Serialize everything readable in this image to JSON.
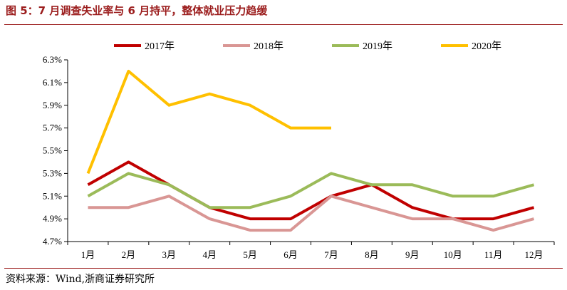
{
  "figure": {
    "title": "图 5：7 月调查失业率与 6 月持平，整体就业压力趋缓",
    "source": "资料来源：Wind,浙商证券研究所"
  },
  "chart_data": {
    "type": "line",
    "title": "图 5：7 月调查失业率与 6 月持平，整体就业压力趋缓",
    "categories": [
      "1月",
      "2月",
      "3月",
      "4月",
      "5月",
      "6月",
      "7月",
      "8月",
      "9月",
      "10月",
      "11月",
      "12月"
    ],
    "ylim": [
      4.7,
      6.3
    ],
    "yticks": [
      4.7,
      4.9,
      5.1,
      5.3,
      5.5,
      5.7,
      5.9,
      6.1,
      6.3
    ],
    "ytick_labels": [
      "4.7%",
      "4.9%",
      "5.1%",
      "5.3%",
      "5.5%",
      "5.7%",
      "5.9%",
      "6.1%",
      "6.3%"
    ],
    "grid": false,
    "legend_position": "top",
    "series": [
      {
        "name": "2017年",
        "color": "#c00000",
        "values": [
          5.2,
          5.4,
          5.2,
          5.0,
          4.9,
          4.9,
          5.1,
          5.2,
          5.0,
          4.9,
          4.9,
          5.0
        ]
      },
      {
        "name": "2018年",
        "color": "#d99694",
        "values": [
          5.0,
          5.0,
          5.1,
          4.9,
          4.8,
          4.8,
          5.1,
          5.0,
          4.9,
          4.9,
          4.8,
          4.9
        ]
      },
      {
        "name": "2019年",
        "color": "#9bbb59",
        "values": [
          5.1,
          5.3,
          5.2,
          5.0,
          5.0,
          5.1,
          5.3,
          5.2,
          5.2,
          5.1,
          5.1,
          5.2
        ]
      },
      {
        "name": "2020年",
        "color": "#ffc000",
        "values": [
          5.3,
          6.2,
          5.9,
          6.0,
          5.9,
          5.7,
          5.7,
          null,
          null,
          null,
          null,
          null
        ]
      }
    ]
  }
}
